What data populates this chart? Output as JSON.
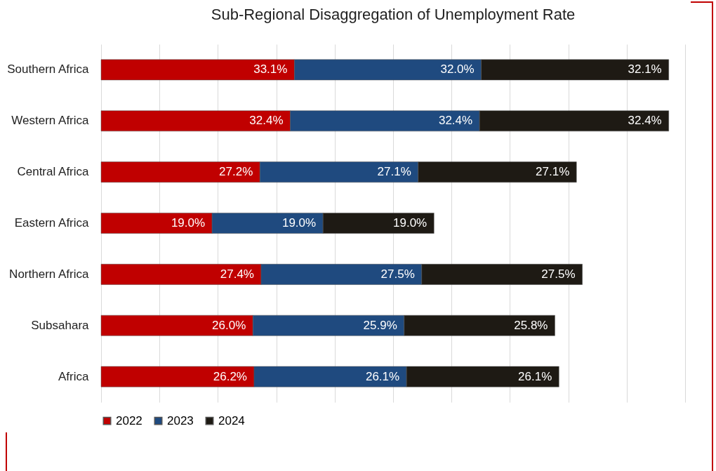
{
  "chart_data": {
    "type": "bar",
    "orientation": "horizontal",
    "stacked": true,
    "title": "Sub-Regional Disaggregation of Unemployment Rate",
    "categories": [
      "Southern Africa",
      "Western Africa",
      "Central Africa",
      "Eastern Africa",
      "Northern Africa",
      "Subsahara",
      "Africa"
    ],
    "series": [
      {
        "name": "2022",
        "color": "#c00000",
        "values": [
          33.1,
          32.4,
          27.2,
          19.0,
          27.4,
          26.0,
          26.2
        ],
        "value_labels": [
          "33.1%",
          "32.4%",
          "27.2%",
          "19.0%",
          "27.4%",
          "26.0%",
          "26.2%"
        ]
      },
      {
        "name": "2023",
        "color": "#1f4a7f",
        "values": [
          32.0,
          32.4,
          27.1,
          19.0,
          27.5,
          25.9,
          26.1
        ],
        "value_labels": [
          "32.0%",
          "32.4%",
          "27.1%",
          "19.0%",
          "27.5%",
          "25.9%",
          "26.1%"
        ]
      },
      {
        "name": "2024",
        "color": "#1e1a14",
        "values": [
          32.1,
          32.4,
          27.1,
          19.0,
          27.5,
          25.8,
          26.1
        ],
        "value_labels": [
          "32.1%",
          "32.4%",
          "27.1%",
          "19.0%",
          "27.5%",
          "25.8%",
          "26.1%"
        ]
      }
    ],
    "xlim": [
      0,
      100
    ],
    "xticks": [
      {
        "value": 0,
        "label": null
      },
      {
        "value": 10,
        "label": null
      },
      {
        "value": 20,
        "label": null
      },
      {
        "value": 30,
        "label": null
      },
      {
        "value": 40,
        "label": null
      },
      {
        "value": 50,
        "label": null
      },
      {
        "value": 60,
        "label": null
      },
      {
        "value": 70,
        "label": null
      },
      {
        "value": 80,
        "label": null
      },
      {
        "value": 90,
        "label": null
      },
      {
        "value": 100,
        "label": null
      }
    ],
    "grid": "x",
    "legend": "bottom",
    "tick_labels": "y"
  }
}
